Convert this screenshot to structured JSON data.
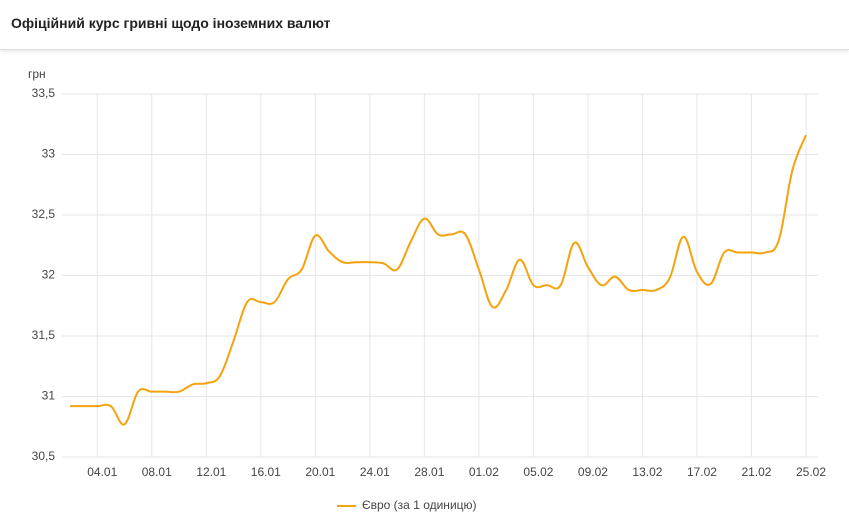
{
  "header": {
    "title": "Офіційний курс гривні щодо іноземних валют"
  },
  "chart_data": {
    "type": "line",
    "y_unit": "грн",
    "categories": [
      null,
      null,
      "04.01",
      null,
      null,
      null,
      "08.01",
      null,
      null,
      null,
      "12.01",
      null,
      null,
      null,
      "16.01",
      null,
      null,
      null,
      "20.01",
      null,
      null,
      null,
      "24.01",
      null,
      null,
      null,
      "28.01",
      null,
      null,
      null,
      "01.02",
      null,
      null,
      null,
      "05.02",
      null,
      null,
      null,
      "09.02",
      null,
      null,
      null,
      "13.02",
      null,
      null,
      null,
      "17.02",
      null,
      null,
      null,
      "21.02",
      null,
      null,
      null,
      "25.02"
    ],
    "series": [
      {
        "name": "Євро (за 1 одиницю)",
        "color": "#f5a20f",
        "values": [
          30.92,
          30.92,
          30.92,
          30.92,
          30.77,
          31.04,
          31.04,
          31.04,
          31.04,
          31.1,
          31.11,
          31.17,
          31.46,
          31.78,
          31.78,
          31.78,
          31.97,
          32.05,
          32.33,
          32.2,
          32.11,
          32.11,
          32.11,
          32.1,
          32.05,
          32.28,
          32.47,
          32.34,
          32.34,
          32.34,
          32.05,
          31.74,
          31.88,
          32.13,
          31.92,
          31.92,
          31.92,
          32.27,
          32.07,
          31.92,
          31.99,
          31.88,
          31.88,
          31.88,
          31.98,
          32.32,
          32.03,
          31.93,
          32.19,
          32.19,
          32.19,
          32.19,
          32.29,
          32.87,
          33.16
        ]
      }
    ],
    "ylim": [
      30.5,
      33.5
    ],
    "yticks": [
      {
        "value": 30.5,
        "label": "30,5"
      },
      31,
      {
        "value": 31.5,
        "label": "31,5"
      },
      32,
      {
        "value": 32.5,
        "label": "32,5"
      },
      33,
      {
        "value": 33.5,
        "label": "33,5"
      }
    ],
    "grid": true,
    "legend": "bottom"
  }
}
